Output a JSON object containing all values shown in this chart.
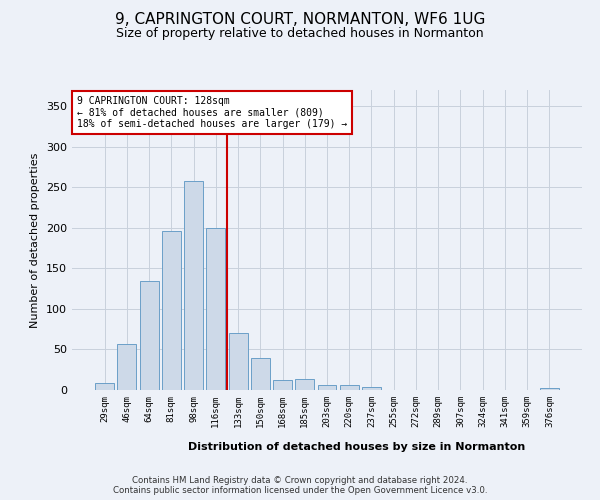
{
  "title": "9, CAPRINGTON COURT, NORMANTON, WF6 1UG",
  "subtitle": "Size of property relative to detached houses in Normanton",
  "xlabel": "Distribution of detached houses by size in Normanton",
  "ylabel": "Number of detached properties",
  "categories": [
    "29sqm",
    "46sqm",
    "64sqm",
    "81sqm",
    "98sqm",
    "116sqm",
    "133sqm",
    "150sqm",
    "168sqm",
    "185sqm",
    "203sqm",
    "220sqm",
    "237sqm",
    "255sqm",
    "272sqm",
    "289sqm",
    "307sqm",
    "324sqm",
    "341sqm",
    "359sqm",
    "376sqm"
  ],
  "values": [
    9,
    57,
    135,
    196,
    258,
    200,
    70,
    40,
    12,
    13,
    6,
    6,
    4,
    0,
    0,
    0,
    0,
    0,
    0,
    0,
    3
  ],
  "bar_color": "#cdd9e8",
  "bar_edge_color": "#6b9fc8",
  "red_line_index": 6,
  "ylim": [
    0,
    370
  ],
  "yticks": [
    0,
    50,
    100,
    150,
    200,
    250,
    300,
    350
  ],
  "bg_color": "#edf1f8",
  "plot_bg_color": "#edf1f8",
  "footer1": "Contains HM Land Registry data © Crown copyright and database right 2024.",
  "footer2": "Contains public sector information licensed under the Open Government Licence v3.0.",
  "title_fontsize": 11,
  "subtitle_fontsize": 9,
  "annotation_line1": "9 CAPRINGTON COURT: 128sqm",
  "annotation_line2": "← 81% of detached houses are smaller (809)",
  "annotation_line3": "18% of semi-detached houses are larger (179) →",
  "annotation_box_color": "#ffffff",
  "annotation_box_edge": "#cc0000"
}
